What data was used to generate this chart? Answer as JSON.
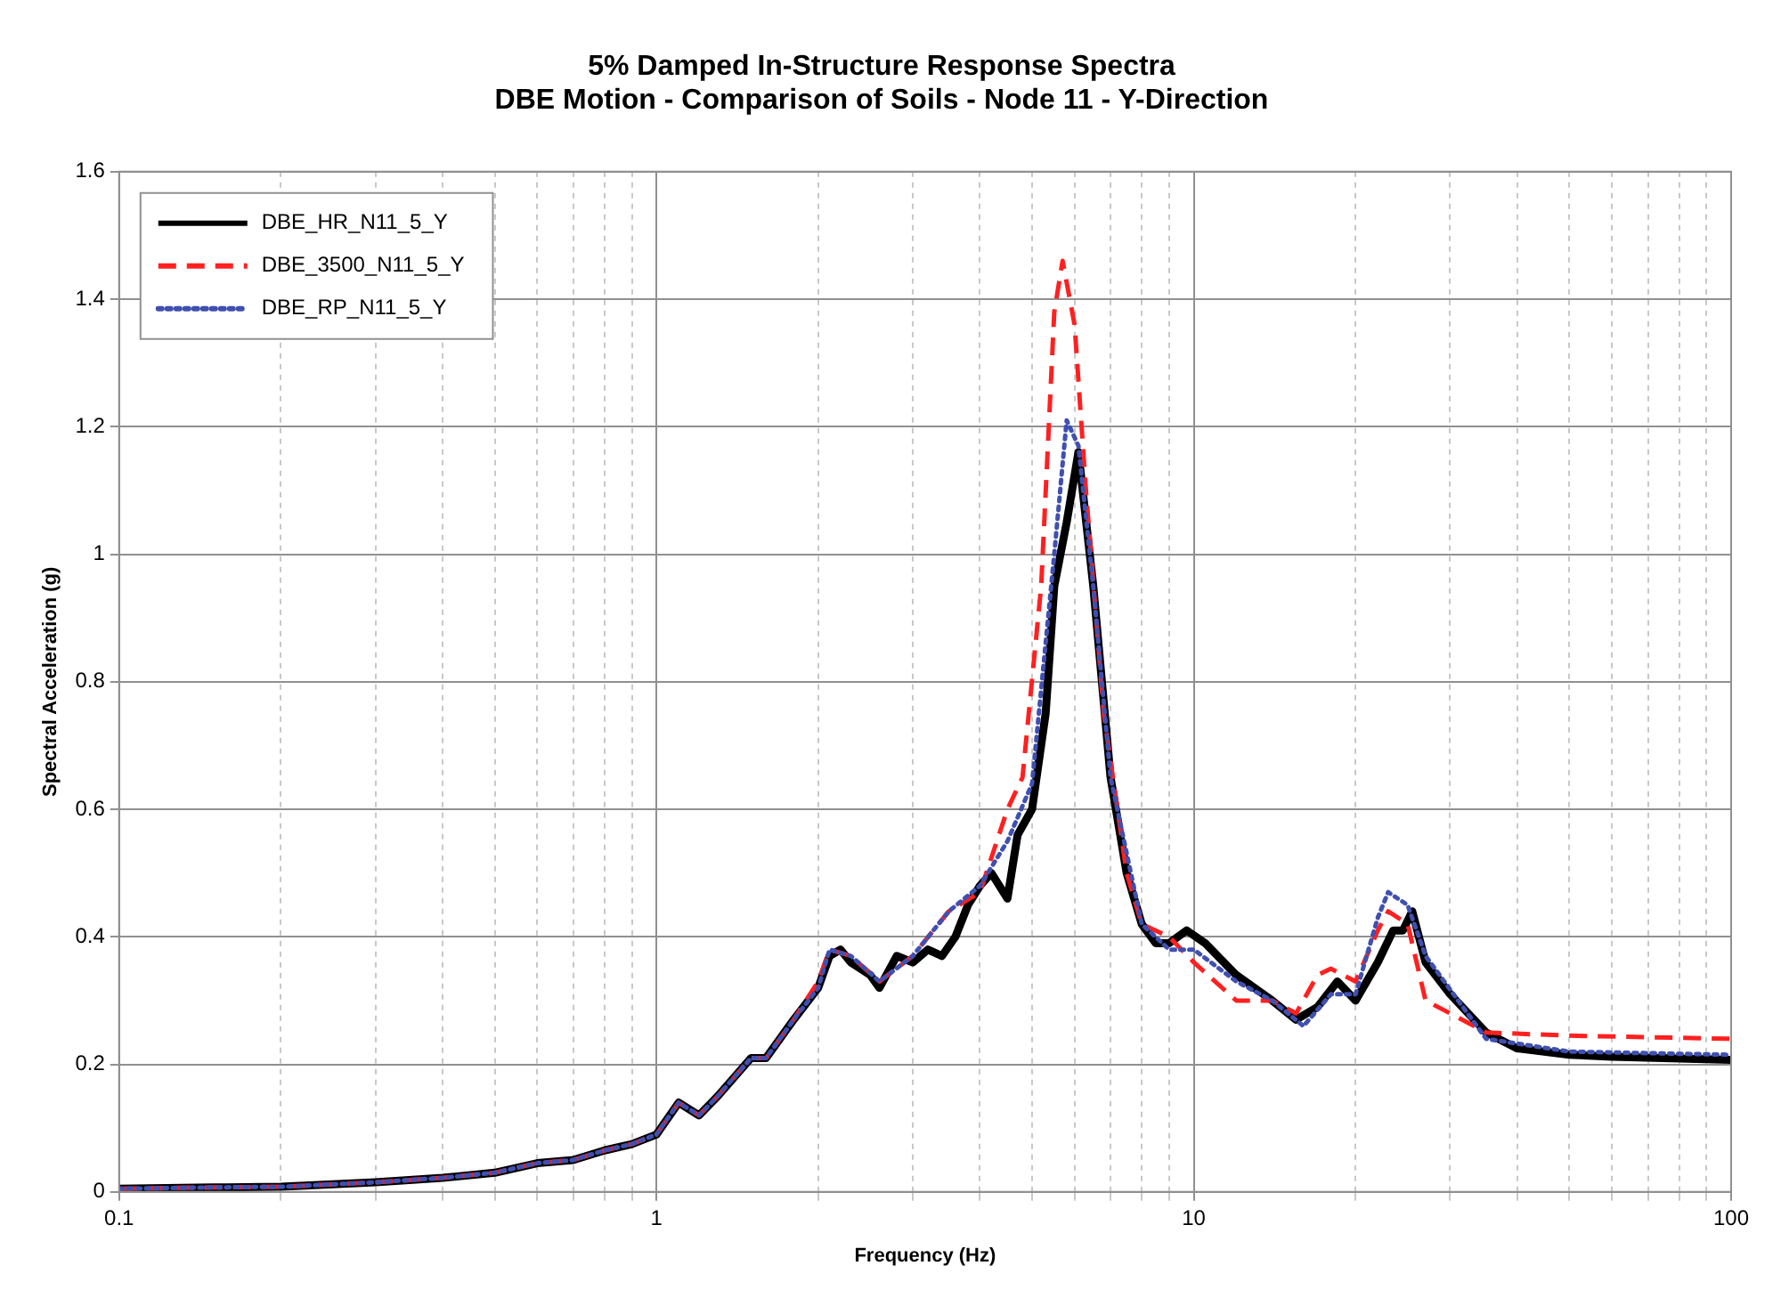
{
  "chart_data": {
    "type": "line",
    "title": "5% Damped In-Structure Response Spectra\nDBE Motion - Comparison of Soils - Node 11 - Y-Direction",
    "xlabel": "Frequency (Hz)",
    "ylabel": "Spectral Acceleration (g)",
    "log": "x",
    "grid": true,
    "legend": "top left",
    "marker": "none",
    "xlim": [
      0.1,
      100
    ],
    "xticks": [
      0.1,
      {
        "value": 0.2,
        "label": null
      },
      {
        "value": 0.3,
        "label": null
      },
      {
        "value": 0.4,
        "label": null
      },
      {
        "value": 0.5,
        "label": null
      },
      {
        "value": 0.6,
        "label": null
      },
      {
        "value": 0.7,
        "label": null
      },
      {
        "value": 0.8,
        "label": null
      },
      {
        "value": 0.9,
        "label": null
      },
      1,
      {
        "value": 2,
        "label": null
      },
      {
        "value": 3,
        "label": null
      },
      {
        "value": 4,
        "label": null
      },
      {
        "value": 5,
        "label": null
      },
      {
        "value": 6,
        "label": null
      },
      {
        "value": 7,
        "label": null
      },
      {
        "value": 8,
        "label": null
      },
      {
        "value": 9,
        "label": null
      },
      10,
      {
        "value": 20,
        "label": null
      },
      {
        "value": 30,
        "label": null
      },
      {
        "value": 40,
        "label": null
      },
      {
        "value": 50,
        "label": null
      },
      {
        "value": 60,
        "label": null
      },
      {
        "value": 70,
        "label": null
      },
      {
        "value": 80,
        "label": null
      },
      {
        "value": 90,
        "label": null
      },
      100
    ],
    "ylim": [
      0,
      1.6
    ],
    "yticks": [
      0,
      0.2,
      0.4,
      0.6,
      0.8,
      1,
      1.2,
      1.4,
      1.6
    ],
    "series": [
      {
        "name": "DBE_HR_N11_5_Y",
        "color": "#000000",
        "line_style": "solid",
        "x": [
          0.1,
          0.15,
          0.2,
          0.3,
          0.4,
          0.5,
          0.6,
          0.7,
          0.8,
          0.9,
          1.0,
          1.1,
          1.2,
          1.3,
          1.5,
          1.6,
          1.8,
          2.0,
          2.1,
          2.2,
          2.3,
          2.5,
          2.6,
          2.8,
          3.0,
          3.2,
          3.4,
          3.6,
          3.8,
          4.0,
          4.2,
          4.5,
          4.7,
          5.0,
          5.3,
          5.5,
          5.8,
          6.1,
          6.5,
          7,
          7.5,
          8,
          8.5,
          9,
          9.7,
          10.5,
          12,
          14,
          15.5,
          17,
          18.5,
          20,
          22,
          23.5,
          24.5,
          25.5,
          27,
          30,
          35,
          40,
          50,
          60,
          100
        ],
        "values": [
          0.005,
          0.007,
          0.008,
          0.015,
          0.022,
          0.03,
          0.045,
          0.05,
          0.065,
          0.075,
          0.09,
          0.14,
          0.12,
          0.15,
          0.21,
          0.21,
          0.27,
          0.32,
          0.37,
          0.38,
          0.36,
          0.34,
          0.32,
          0.37,
          0.36,
          0.38,
          0.37,
          0.4,
          0.45,
          0.48,
          0.5,
          0.46,
          0.56,
          0.6,
          0.75,
          0.95,
          1.05,
          1.16,
          0.95,
          0.65,
          0.5,
          0.42,
          0.39,
          0.39,
          0.41,
          0.39,
          0.34,
          0.3,
          0.27,
          0.29,
          0.33,
          0.3,
          0.36,
          0.41,
          0.41,
          0.44,
          0.36,
          0.31,
          0.25,
          0.225,
          0.215,
          0.212,
          0.207
        ]
      },
      {
        "name": "DBE_3500_N11_5_Y",
        "color": "#ff2020",
        "line_style": "dashed",
        "x": [
          0.1,
          0.15,
          0.2,
          0.3,
          0.4,
          0.5,
          0.6,
          0.7,
          0.8,
          0.9,
          1.0,
          1.1,
          1.2,
          1.3,
          1.5,
          1.6,
          1.8,
          2.0,
          2.1,
          2.3,
          2.6,
          3.0,
          3.5,
          4.0,
          4.5,
          4.8,
          5.2,
          5.5,
          5.7,
          6.0,
          6.3,
          6.8,
          7.5,
          8,
          9,
          10,
          12,
          14,
          15.5,
          17,
          18,
          20,
          22,
          23,
          25,
          27,
          30,
          35,
          50,
          100
        ],
        "values": [
          0.005,
          0.007,
          0.008,
          0.015,
          0.022,
          0.03,
          0.045,
          0.05,
          0.065,
          0.075,
          0.09,
          0.14,
          0.12,
          0.15,
          0.21,
          0.21,
          0.27,
          0.33,
          0.38,
          0.37,
          0.33,
          0.37,
          0.44,
          0.47,
          0.6,
          0.65,
          0.95,
          1.38,
          1.46,
          1.36,
          1.1,
          0.75,
          0.5,
          0.42,
          0.4,
          0.36,
          0.3,
          0.3,
          0.28,
          0.34,
          0.35,
          0.33,
          0.41,
          0.44,
          0.42,
          0.3,
          0.28,
          0.25,
          0.245,
          0.24
        ]
      },
      {
        "name": "DBE_RP_N11_5_Y",
        "color": "#4050b0",
        "line_style": "dotted",
        "x": [
          0.1,
          0.15,
          0.2,
          0.3,
          0.4,
          0.5,
          0.6,
          0.7,
          0.8,
          0.9,
          1.0,
          1.1,
          1.2,
          1.3,
          1.5,
          1.6,
          1.8,
          2.0,
          2.1,
          2.3,
          2.6,
          3.0,
          3.5,
          4.0,
          4.5,
          5.0,
          5.5,
          5.8,
          6.1,
          6.5,
          7,
          8,
          9,
          10,
          12,
          14,
          16,
          18,
          20,
          22,
          23,
          25,
          27,
          35,
          50,
          100
        ],
        "values": [
          0.005,
          0.007,
          0.008,
          0.015,
          0.022,
          0.03,
          0.045,
          0.05,
          0.065,
          0.075,
          0.09,
          0.14,
          0.12,
          0.15,
          0.21,
          0.21,
          0.27,
          0.32,
          0.38,
          0.37,
          0.33,
          0.37,
          0.44,
          0.48,
          0.55,
          0.64,
          1.0,
          1.21,
          1.17,
          0.95,
          0.65,
          0.42,
          0.38,
          0.38,
          0.33,
          0.3,
          0.26,
          0.31,
          0.31,
          0.43,
          0.47,
          0.45,
          0.37,
          0.24,
          0.22,
          0.215
        ]
      }
    ]
  }
}
